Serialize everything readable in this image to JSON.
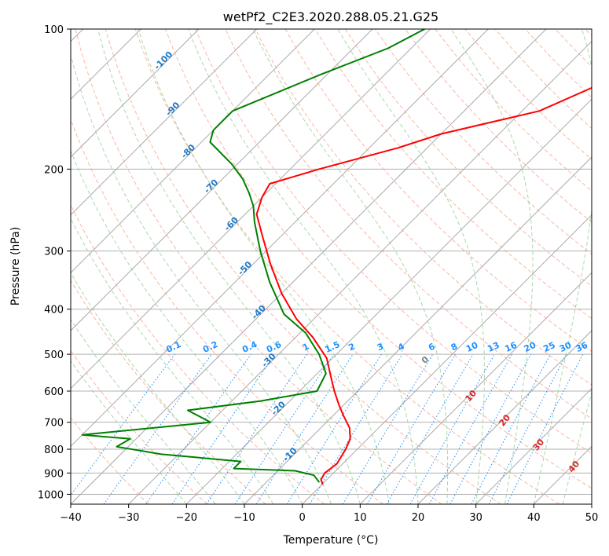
{
  "chart_data": {
    "type": "line",
    "title": "wetPf2_C2E3.2020.288.05.21.G25",
    "xlabel": "Temperature (°C)",
    "ylabel": "Pressure (hPa)",
    "xlim": [
      -40,
      50
    ],
    "ylim": [
      1050,
      100
    ],
    "y_scale": "log",
    "skew": true,
    "grid": true,
    "x_ticks": [
      -40,
      -30,
      -20,
      -10,
      0,
      10,
      20,
      30,
      40,
      50
    ],
    "y_ticks": [
      100,
      200,
      300,
      400,
      500,
      600,
      700,
      800,
      900,
      1000
    ],
    "series": [
      {
        "name": "",
        "color": "#ff0000",
        "points": [
          [
            -10.0,
            100
          ],
          [
            -13.0,
            110
          ],
          [
            -19.0,
            125
          ],
          [
            -27.0,
            150
          ],
          [
            -40.0,
            168
          ],
          [
            -45.0,
            180
          ],
          [
            -55.0,
            200
          ],
          [
            -61.0,
            215
          ],
          [
            -60.0,
            230
          ],
          [
            -58.0,
            250
          ],
          [
            -53.0,
            280
          ],
          [
            -47.0,
            320
          ],
          [
            -40.0,
            370
          ],
          [
            -33.0,
            420
          ],
          [
            -27.0,
            460
          ],
          [
            -21.0,
            510
          ],
          [
            -17.0,
            560
          ],
          [
            -14.0,
            600
          ],
          [
            -11.0,
            640
          ],
          [
            -8.0,
            680
          ],
          [
            -5.0,
            720
          ],
          [
            -3.0,
            760
          ],
          [
            -2.0,
            800
          ],
          [
            -1.0,
            860
          ],
          [
            -1.5,
            900
          ],
          [
            -1.0,
            930
          ],
          [
            0.0,
            950
          ]
        ]
      },
      {
        "name": "",
        "color": "#008000",
        "points": [
          [
            -61.0,
            100
          ],
          [
            -64.0,
            110
          ],
          [
            -71.0,
            125
          ],
          [
            -80.0,
            150
          ],
          [
            -80.0,
            165
          ],
          [
            -78.5,
            175
          ],
          [
            -71.0,
            195
          ],
          [
            -66.5,
            210
          ],
          [
            -63.0,
            225
          ],
          [
            -60.0,
            240
          ],
          [
            -57.0,
            260
          ],
          [
            -51.0,
            300
          ],
          [
            -44.0,
            350
          ],
          [
            -36.0,
            410
          ],
          [
            -29.0,
            450
          ],
          [
            -23.0,
            500
          ],
          [
            -18.5,
            550
          ],
          [
            -17.0,
            600
          ],
          [
            -25.0,
            630
          ],
          [
            -36.0,
            660
          ],
          [
            -30.0,
            700
          ],
          [
            -50.0,
            745
          ],
          [
            -41.0,
            760
          ],
          [
            -42.0,
            790
          ],
          [
            -33.0,
            820
          ],
          [
            -18.0,
            850
          ],
          [
            -18.0,
            880
          ],
          [
            -7.0,
            890
          ],
          [
            -3.0,
            910
          ],
          [
            -1.0,
            940
          ]
        ]
      }
    ],
    "temperature_labels": {
      "color": "#1f78c8",
      "values": [
        "-100",
        "-90",
        "-80",
        "-70",
        "-60",
        "-50",
        "-40",
        "-30",
        "-20",
        "-10"
      ]
    },
    "mixing_ratio_labels": {
      "color": "#1e90ff",
      "values": [
        "0.1",
        "0.2",
        "0.4",
        "0.6",
        "1",
        "1.5",
        "2",
        "3",
        "4",
        "6",
        "8",
        "10",
        "13",
        "16",
        "20",
        "25",
        "30",
        "36"
      ]
    },
    "zero_label": {
      "text": "0",
      "color": "#808080"
    },
    "moist_adiabat_labels": {
      "color": "#d62728",
      "values": [
        "10",
        "20",
        "30",
        "40"
      ]
    }
  }
}
